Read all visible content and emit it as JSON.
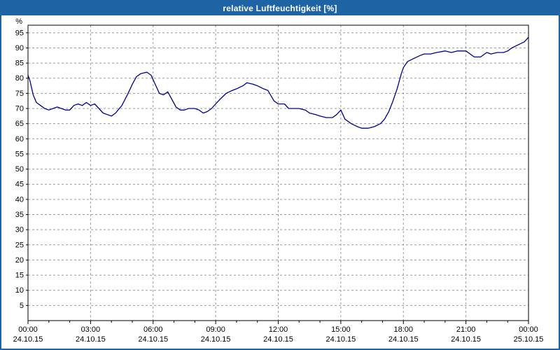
{
  "window": {
    "title": "relative Luftfeuchtigkeit [%]"
  },
  "colors": {
    "titlebar": "#1e63a4",
    "frame": "#1e63a4",
    "line": "#00008b",
    "grid": "#999999",
    "axis": "#000000",
    "plot_bg": "#ffffff",
    "page_bg": "#ffffff"
  },
  "chart_data": {
    "type": "line",
    "title": "relative Luftfeuchtigkeit [%]",
    "ylabel": "%",
    "ylim": [
      0,
      97.5
    ],
    "yticks": [
      5,
      10,
      15,
      20,
      25,
      30,
      35,
      40,
      45,
      50,
      55,
      60,
      65,
      70,
      75,
      80,
      85,
      90,
      95
    ],
    "x_range_hours": [
      0,
      24
    ],
    "grid": "dashed",
    "legend": "none",
    "xticks": [
      {
        "hour": 0,
        "time": "00:00",
        "date": "24.10.15"
      },
      {
        "hour": 3,
        "time": "03:00",
        "date": "24.10.15"
      },
      {
        "hour": 6,
        "time": "06:00",
        "date": "24.10.15"
      },
      {
        "hour": 9,
        "time": "09:00",
        "date": "24.10.15"
      },
      {
        "hour": 12,
        "time": "12:00",
        "date": "24.10.15"
      },
      {
        "hour": 15,
        "time": "15:00",
        "date": "24.10.15"
      },
      {
        "hour": 18,
        "time": "18:00",
        "date": "24.10.15"
      },
      {
        "hour": 21,
        "time": "21:00",
        "date": "24.10.15"
      },
      {
        "hour": 24,
        "time": "00:00",
        "date": "25.10.15"
      }
    ],
    "series": [
      {
        "name": "relative Luftfeuchtigkeit",
        "color": "#00008b",
        "points": [
          [
            0,
            81
          ],
          [
            0.1,
            79
          ],
          [
            0.25,
            74.5
          ],
          [
            0.4,
            72
          ],
          [
            0.6,
            71
          ],
          [
            0.8,
            70
          ],
          [
            1,
            69.5
          ],
          [
            1.2,
            70
          ],
          [
            1.4,
            70.5
          ],
          [
            1.6,
            70
          ],
          [
            1.8,
            69.5
          ],
          [
            2,
            69.5
          ],
          [
            2.2,
            71
          ],
          [
            2.4,
            71.5
          ],
          [
            2.6,
            71
          ],
          [
            2.8,
            72
          ],
          [
            3,
            71
          ],
          [
            3.2,
            71.5
          ],
          [
            3.4,
            70
          ],
          [
            3.6,
            68.5
          ],
          [
            3.8,
            68
          ],
          [
            4,
            67.5
          ],
          [
            4.2,
            68.5
          ],
          [
            4.5,
            71
          ],
          [
            4.8,
            75
          ],
          [
            5,
            78
          ],
          [
            5.2,
            80.5
          ],
          [
            5.4,
            81.5
          ],
          [
            5.7,
            82
          ],
          [
            5.9,
            81
          ],
          [
            6.1,
            78
          ],
          [
            6.3,
            75
          ],
          [
            6.5,
            74.5
          ],
          [
            6.7,
            75.5
          ],
          [
            6.9,
            73
          ],
          [
            7.1,
            70.5
          ],
          [
            7.3,
            69.5
          ],
          [
            7.5,
            69.5
          ],
          [
            7.7,
            70
          ],
          [
            8,
            70
          ],
          [
            8.2,
            69.5
          ],
          [
            8.4,
            68.5
          ],
          [
            8.6,
            69
          ],
          [
            8.8,
            70
          ],
          [
            9,
            71.5
          ],
          [
            9.2,
            73
          ],
          [
            9.5,
            75
          ],
          [
            9.8,
            76
          ],
          [
            10,
            76.5
          ],
          [
            10.3,
            77.5
          ],
          [
            10.5,
            78.5
          ],
          [
            10.8,
            78
          ],
          [
            11,
            77.5
          ],
          [
            11.3,
            76.5
          ],
          [
            11.5,
            76
          ],
          [
            11.8,
            72.5
          ],
          [
            12,
            71.5
          ],
          [
            12.3,
            71.5
          ],
          [
            12.5,
            70
          ],
          [
            12.8,
            70
          ],
          [
            13,
            70
          ],
          [
            13.3,
            69.5
          ],
          [
            13.5,
            68.5
          ],
          [
            13.8,
            68
          ],
          [
            14,
            67.5
          ],
          [
            14.3,
            67
          ],
          [
            14.6,
            67
          ],
          [
            14.8,
            68
          ],
          [
            15,
            69.5
          ],
          [
            15.2,
            66.5
          ],
          [
            15.5,
            65
          ],
          [
            15.8,
            64
          ],
          [
            16,
            63.5
          ],
          [
            16.3,
            63.5
          ],
          [
            16.6,
            64
          ],
          [
            16.9,
            65
          ],
          [
            17.1,
            66.5
          ],
          [
            17.3,
            69
          ],
          [
            17.5,
            72.5
          ],
          [
            17.7,
            76.5
          ],
          [
            17.9,
            81.5
          ],
          [
            18,
            83.5
          ],
          [
            18.2,
            85.5
          ],
          [
            18.5,
            86.5
          ],
          [
            18.8,
            87.5
          ],
          [
            19,
            88
          ],
          [
            19.3,
            88
          ],
          [
            19.6,
            88.5
          ],
          [
            20,
            89
          ],
          [
            20.3,
            88.5
          ],
          [
            20.6,
            89
          ],
          [
            21,
            89
          ],
          [
            21.2,
            88
          ],
          [
            21.4,
            87
          ],
          [
            21.7,
            87
          ],
          [
            22,
            88.5
          ],
          [
            22.2,
            88
          ],
          [
            22.5,
            88.5
          ],
          [
            22.8,
            88.5
          ],
          [
            23,
            89
          ],
          [
            23.2,
            90
          ],
          [
            23.5,
            91
          ],
          [
            23.8,
            92
          ],
          [
            24,
            93.5
          ]
        ]
      }
    ]
  }
}
